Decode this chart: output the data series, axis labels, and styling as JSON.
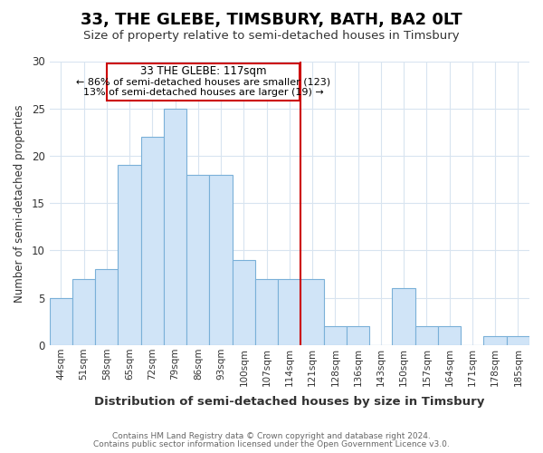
{
  "title": "33, THE GLEBE, TIMSBURY, BATH, BA2 0LT",
  "subtitle": "Size of property relative to semi-detached houses in Timsbury",
  "xlabel": "Distribution of semi-detached houses by size in Timsbury",
  "ylabel": "Number of semi-detached properties",
  "bar_labels": [
    "44sqm",
    "51sqm",
    "58sqm",
    "65sqm",
    "72sqm",
    "79sqm",
    "86sqm",
    "93sqm",
    "100sqm",
    "107sqm",
    "114sqm",
    "121sqm",
    "128sqm",
    "136sqm",
    "143sqm",
    "150sqm",
    "157sqm",
    "164sqm",
    "171sqm",
    "178sqm",
    "185sqm"
  ],
  "bar_values": [
    5,
    7,
    8,
    19,
    22,
    25,
    18,
    18,
    9,
    7,
    7,
    7,
    2,
    2,
    0,
    6,
    2,
    2,
    0,
    1,
    1
  ],
  "bar_color": "#d0e4f7",
  "bar_edgecolor": "#7ab0d8",
  "annotation_title": "33 THE GLEBE: 117sqm",
  "annotation_line1": "← 86% of semi-detached houses are smaller (123)",
  "annotation_line2": "13% of semi-detached houses are larger (19) →",
  "ylim": [
    0,
    30
  ],
  "yticks": [
    0,
    5,
    10,
    15,
    20,
    25,
    30
  ],
  "background_color": "#ffffff",
  "grid_color": "#d8e4f0",
  "red_line_color": "#cc0000",
  "annotation_box_color": "#cc0000",
  "footer_line1": "Contains HM Land Registry data © Crown copyright and database right 2024.",
  "footer_line2": "Contains public sector information licensed under the Open Government Licence v3.0."
}
